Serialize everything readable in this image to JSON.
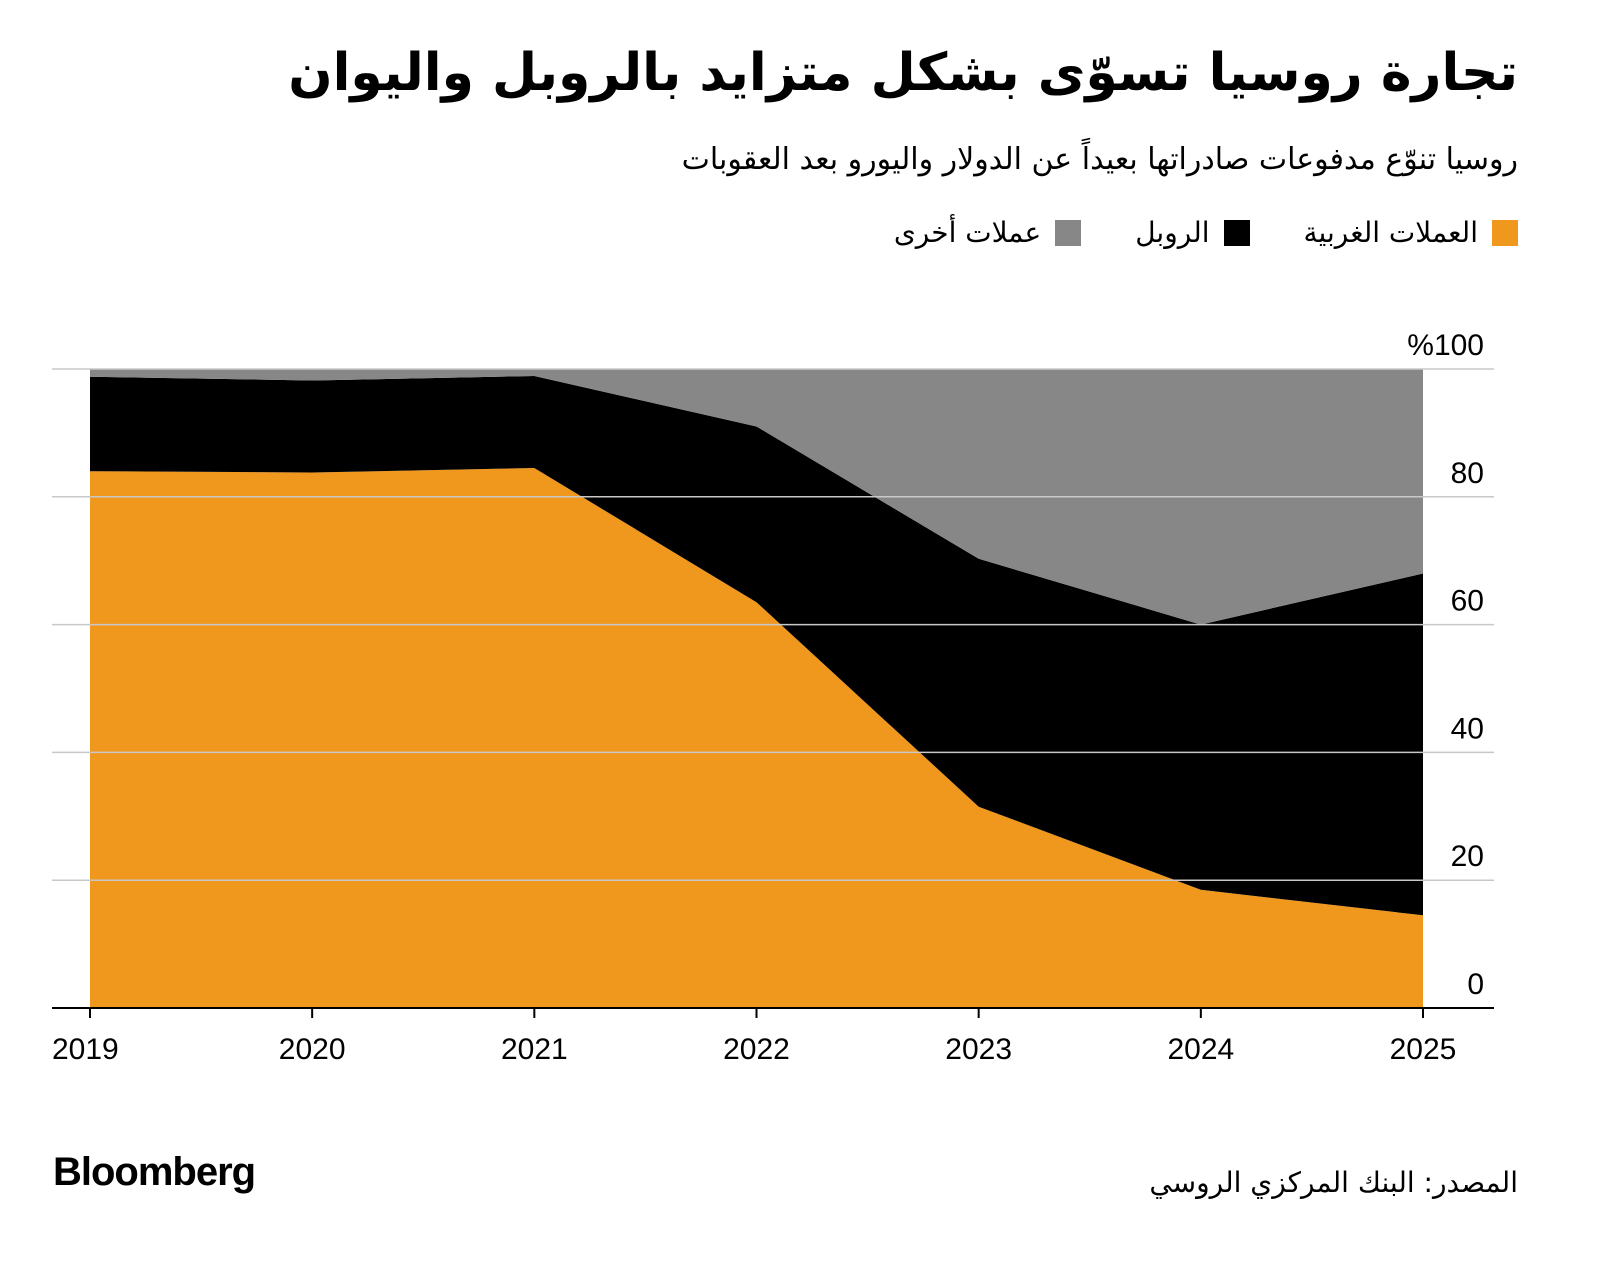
{
  "title": "تجارة روسيا تسوّى بشكل متزايد بالروبل واليوان",
  "subtitle": "روسيا تنوّع مدفوعات صادراتها بعيداً عن الدولار واليورو بعد العقوبات",
  "legend": [
    {
      "label": "العملات الغربية",
      "color": "#f0971e"
    },
    {
      "label": "الروبل",
      "color": "#000000"
    },
    {
      "label": "عملات أخرى",
      "color": "#878787"
    }
  ],
  "source": "المصدر: البنك المركزي الروسي",
  "brand": "Bloomberg",
  "chart_data": {
    "type": "area",
    "stacked": true,
    "title": "تجارة روسيا تسوّى بشكل متزايد بالروبل واليوان",
    "x": [
      "2019",
      "2020",
      "2021",
      "2022",
      "2023",
      "2024",
      "2025"
    ],
    "series": [
      {
        "name": "العملات الغربية",
        "color": "#f0971e",
        "values": [
          84,
          83.8,
          84.5,
          63.5,
          31.5,
          18.5,
          14.5
        ]
      },
      {
        "name": "الروبل",
        "color": "#000000",
        "values": [
          14.8,
          14.4,
          14.4,
          27.5,
          38.8,
          41.5,
          53.5
        ]
      },
      {
        "name": "عملات أخرى",
        "color": "#878787",
        "values": [
          1.2,
          1.8,
          1.1,
          9.0,
          29.7,
          40.0,
          32.0
        ]
      }
    ],
    "ylim": [
      0,
      100
    ],
    "yticks": [
      "0",
      "20",
      "40",
      "60",
      "80",
      "%100"
    ],
    "ytick_values": [
      0,
      20,
      40,
      60,
      80,
      100
    ],
    "grid": true,
    "xlabel": "",
    "ylabel": ""
  }
}
